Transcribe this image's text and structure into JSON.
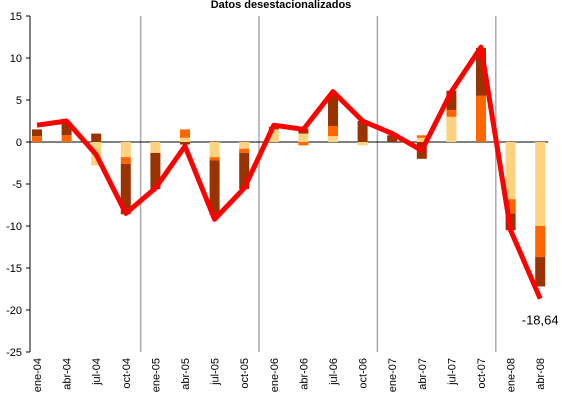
{
  "chart_data": {
    "type": "bar",
    "title": "Datos desestacionalizados",
    "categories": [
      "ene-04",
      "abr-04",
      "jul-04",
      "oct-04",
      "ene-05",
      "abr-05",
      "jul-05",
      "oct-05",
      "ene-06",
      "abr-06",
      "jul-06",
      "oct-06",
      "ene-07",
      "abr-07",
      "jul-07",
      "oct-07",
      "ene-08",
      "abr-08"
    ],
    "series": [
      {
        "color": "#ffd27f",
        "values": [
          0,
          0,
          -2.8,
          -1.8,
          -1.3,
          0.5,
          -1.8,
          -0.8,
          1.5,
          1,
          0.7,
          -0.4,
          0,
          0.5,
          3,
          0,
          -6.8,
          -10
        ]
      },
      {
        "color": "#ff6600",
        "values": [
          0.7,
          0.8,
          0,
          -0.8,
          0,
          1,
          -0.4,
          -0.5,
          0,
          -0.4,
          1.2,
          0,
          0,
          0.3,
          0.8,
          5.5,
          -1.7,
          -3.7
        ]
      },
      {
        "color": "#993300",
        "values": [
          0.8,
          1.5,
          1,
          -6,
          -4.3,
          -0.3,
          -6.5,
          -4.3,
          0.3,
          0.6,
          3.7,
          2.5,
          0.8,
          -2,
          2.3,
          5.7,
          -2,
          -3.5
        ]
      },
      {
        "type": "line",
        "color": "#ff0000",
        "values": [
          2,
          2.5,
          -1.5,
          -8.5,
          -5.5,
          -0.5,
          -9.2,
          -5.5,
          2,
          1.5,
          6,
          2.5,
          1,
          -1,
          6,
          11.3,
          -10.5,
          -18.64
        ],
        "value_labels": [
          null,
          null,
          null,
          null,
          null,
          null,
          null,
          null,
          null,
          null,
          null,
          null,
          null,
          null,
          null,
          null,
          null,
          "-18,64"
        ]
      }
    ],
    "ylim": [
      -25,
      15
    ],
    "yticks": [
      -25,
      -20,
      -15,
      -10,
      -5,
      0,
      5,
      10,
      15
    ]
  }
}
